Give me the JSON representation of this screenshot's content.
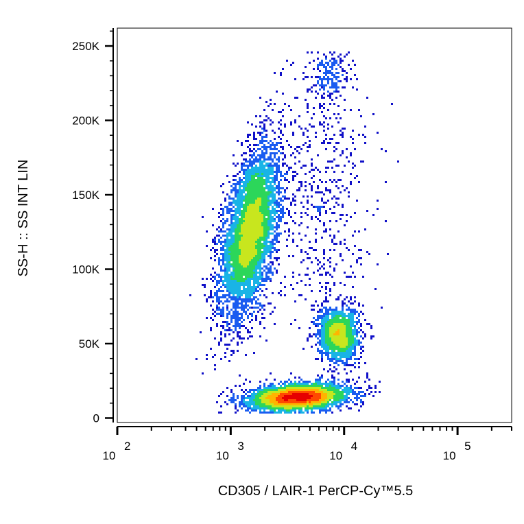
{
  "chart_data": {
    "type": "scatter",
    "subtype": "flow-cytometry density dot plot",
    "xlabel": "CD305 / LAIR-1 PerCP-Cy™5.5",
    "ylabel": "SS-H :: SS INT LIN",
    "x_scale": "log",
    "y_scale": "linear",
    "xlim": [
      100,
      300000
    ],
    "ylim": [
      -3000,
      262000
    ],
    "x_ticks": [
      {
        "value": 100,
        "base": "10",
        "exp": "2"
      },
      {
        "value": 1000,
        "base": "10",
        "exp": "3"
      },
      {
        "value": 10000,
        "base": "10",
        "exp": "4"
      },
      {
        "value": 100000,
        "base": "10",
        "exp": "5"
      }
    ],
    "y_ticks": [
      {
        "value": 0,
        "label": "0"
      },
      {
        "value": 50000,
        "label": "50K"
      },
      {
        "value": 100000,
        "label": "100K"
      },
      {
        "value": 150000,
        "label": "150K"
      },
      {
        "value": 200000,
        "label": "200K"
      },
      {
        "value": 250000,
        "label": "250K"
      }
    ],
    "grid": false,
    "legend": "none",
    "density_colormap": [
      "#1010c8",
      "#1a5cf0",
      "#19b4e6",
      "#2cd65a",
      "#c8e61e",
      "#ffb400",
      "#ff4a00",
      "#e60000"
    ],
    "populations": [
      {
        "center_x": 1500,
        "center_y": 125000,
        "spread_log_x": 0.13,
        "spread_y": 28000,
        "tilt": 0.55,
        "count": 5200
      },
      {
        "center_x": 9000,
        "center_y": 56000,
        "spread_log_x": 0.09,
        "spread_y": 9000,
        "tilt": 0.0,
        "count": 1500
      },
      {
        "center_x": 4000,
        "center_y": 14000,
        "spread_log_x": 0.22,
        "spread_y": 4500,
        "tilt": 0.25,
        "count": 3800
      },
      {
        "center_x": 6500,
        "center_y": 150000,
        "spread_log_x": 0.22,
        "spread_y": 55000,
        "tilt": 0.0,
        "count": 650
      },
      {
        "center_x": 7500,
        "center_y": 230000,
        "spread_log_x": 0.08,
        "spread_y": 9000,
        "tilt": 0.0,
        "count": 160
      }
    ]
  }
}
